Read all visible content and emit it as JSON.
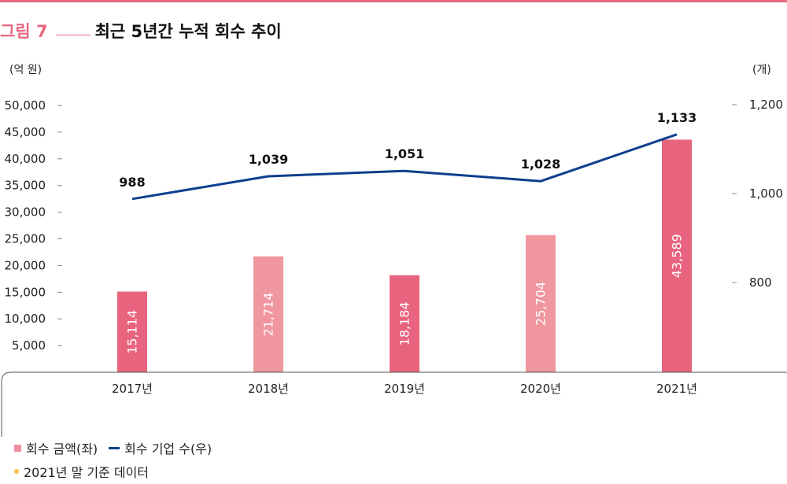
{
  "figure": {
    "label": "그림 7",
    "title": "최근 5년간 누적 회수 추이"
  },
  "colors": {
    "accent": "#e8677f",
    "bar_dark": "#e8647e",
    "bar_light": "#f0969f",
    "line": "#0f3f8c",
    "note_dot": "#f5c242"
  },
  "chart_data": {
    "type": "bar",
    "categories": [
      "2017년",
      "2018년",
      "2019년",
      "2020년",
      "2021년"
    ],
    "series": [
      {
        "name": "회수 금액(좌)",
        "type": "bar",
        "axis": "left",
        "values": [
          15114,
          21714,
          18184,
          25704,
          43589
        ],
        "labels": [
          "15,114",
          "21,714",
          "18,184",
          "25,704",
          "43,589"
        ]
      },
      {
        "name": "회수 기업 수(우)",
        "type": "line",
        "axis": "right",
        "values": [
          988,
          1039,
          1051,
          1028,
          1133
        ],
        "labels": [
          "988",
          "1,039",
          "1,051",
          "1,028",
          "1,133"
        ]
      }
    ],
    "left_axis": {
      "unit": "(억 원)",
      "ticks": [
        "5,000",
        "10,000",
        "15,000",
        "20,000",
        "25,000",
        "30,000",
        "35,000",
        "40,000",
        "45,000",
        "50,000"
      ],
      "tick_values": [
        5000,
        10000,
        15000,
        20000,
        25000,
        30000,
        35000,
        40000,
        45000,
        50000
      ],
      "ylim": [
        0,
        50000
      ]
    },
    "right_axis": {
      "unit": "(개)",
      "ticks": [
        "800",
        "1,000",
        "1,200"
      ],
      "tick_values": [
        800,
        1000,
        1200
      ]
    },
    "legend_position": "bottom-left"
  },
  "legend": {
    "bar_label": "회수 금액(좌)",
    "line_label": "회수 기업 수(우)",
    "note": "2021년 말 기준 데이터"
  }
}
